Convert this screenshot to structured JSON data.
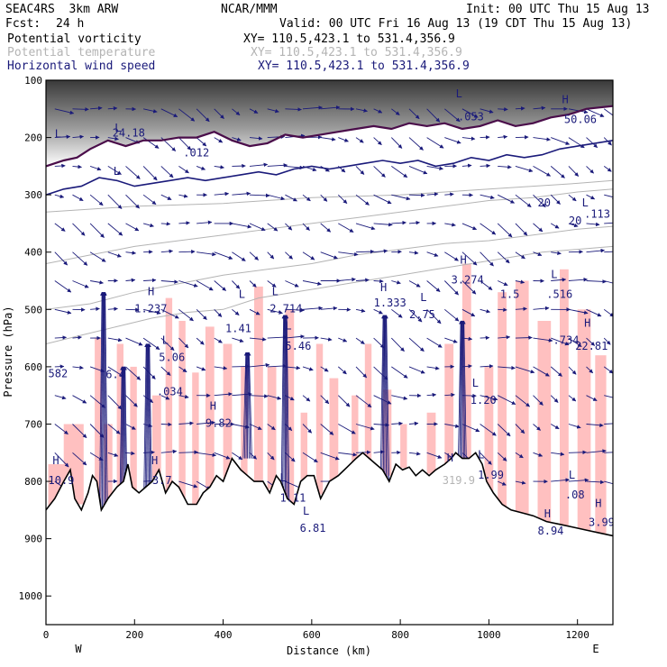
{
  "header": {
    "model": "SEAC4RS  3km ARW",
    "org": "NCAR/MMM",
    "init": "Init: 00 UTC Thu 15 Aug 13",
    "fcst_label": "Fcst:",
    "fcst_value": "24 h",
    "valid": "Valid: 00 UTC Fri 16 Aug 13 (19 CDT Thu 15 Aug 13)"
  },
  "fields": [
    {
      "name": "Potential vorticity",
      "xy": "XY= 110.5,423.1 to 531.4,356.9",
      "color": "#000000"
    },
    {
      "name": "Potential temperature",
      "xy": "XY= 110.5,423.1 to 531.4,356.9",
      "color": "#b4b4b4"
    },
    {
      "name": "Horizontal wind speed",
      "xy": "XY= 110.5,423.1 to 531.4,356.9",
      "color": "#1a1a7a"
    }
  ],
  "chart_data": {
    "type": "cross-section",
    "xlabel": "Distance (km)",
    "ylabel": "Pressure (hPa)",
    "xlim": [
      0,
      1280
    ],
    "ylim": [
      1050,
      100
    ],
    "x_ticks": [
      0,
      200,
      400,
      600,
      800,
      1000,
      1200
    ],
    "y_ticks": [
      100,
      200,
      300,
      400,
      500,
      600,
      700,
      800,
      900,
      1000
    ],
    "x_end_labels": {
      "left": "W",
      "right": "E"
    },
    "colors": {
      "pv_positive": "#ffc0c0",
      "stratosphere": "#555555",
      "pv_line": "#4a0d4a",
      "theta": "#b4b4b4",
      "wind": "#1a1a7a"
    },
    "terrain": [
      [
        0,
        850
      ],
      [
        20,
        830
      ],
      [
        40,
        800
      ],
      [
        55,
        780
      ],
      [
        65,
        830
      ],
      [
        80,
        850
      ],
      [
        95,
        820
      ],
      [
        105,
        790
      ],
      [
        115,
        800
      ],
      [
        125,
        850
      ],
      [
        140,
        830
      ],
      [
        160,
        810
      ],
      [
        175,
        800
      ],
      [
        185,
        770
      ],
      [
        195,
        810
      ],
      [
        210,
        820
      ],
      [
        225,
        810
      ],
      [
        240,
        800
      ],
      [
        255,
        780
      ],
      [
        270,
        820
      ],
      [
        285,
        800
      ],
      [
        300,
        810
      ],
      [
        320,
        840
      ],
      [
        340,
        840
      ],
      [
        355,
        820
      ],
      [
        370,
        810
      ],
      [
        385,
        790
      ],
      [
        400,
        800
      ],
      [
        420,
        760
      ],
      [
        440,
        780
      ],
      [
        455,
        790
      ],
      [
        470,
        800
      ],
      [
        490,
        800
      ],
      [
        505,
        820
      ],
      [
        520,
        790
      ],
      [
        530,
        800
      ],
      [
        545,
        830
      ],
      [
        560,
        840
      ],
      [
        575,
        800
      ],
      [
        590,
        790
      ],
      [
        605,
        790
      ],
      [
        620,
        830
      ],
      [
        640,
        800
      ],
      [
        660,
        790
      ],
      [
        680,
        775
      ],
      [
        700,
        760
      ],
      [
        715,
        750
      ],
      [
        730,
        760
      ],
      [
        745,
        770
      ],
      [
        760,
        780
      ],
      [
        775,
        800
      ],
      [
        790,
        770
      ],
      [
        805,
        780
      ],
      [
        820,
        775
      ],
      [
        835,
        790
      ],
      [
        850,
        780
      ],
      [
        865,
        790
      ],
      [
        880,
        780
      ],
      [
        900,
        770
      ],
      [
        915,
        760
      ],
      [
        925,
        750
      ],
      [
        940,
        760
      ],
      [
        955,
        760
      ],
      [
        970,
        750
      ],
      [
        985,
        770
      ],
      [
        995,
        800
      ],
      [
        1010,
        820
      ],
      [
        1030,
        840
      ],
      [
        1050,
        850
      ],
      [
        1075,
        855
      ],
      [
        1100,
        860
      ],
      [
        1130,
        870
      ],
      [
        1160,
        875
      ],
      [
        1190,
        880
      ],
      [
        1220,
        885
      ],
      [
        1250,
        890
      ],
      [
        1280,
        895
      ]
    ],
    "pv_2pvu": [
      [
        0,
        250
      ],
      [
        40,
        240
      ],
      [
        70,
        235
      ],
      [
        100,
        220
      ],
      [
        140,
        205
      ],
      [
        180,
        215
      ],
      [
        220,
        205
      ],
      [
        260,
        205
      ],
      [
        300,
        200
      ],
      [
        340,
        200
      ],
      [
        380,
        190
      ],
      [
        420,
        205
      ],
      [
        460,
        215
      ],
      [
        500,
        210
      ],
      [
        540,
        195
      ],
      [
        580,
        200
      ],
      [
        620,
        195
      ],
      [
        660,
        190
      ],
      [
        700,
        185
      ],
      [
        740,
        180
      ],
      [
        780,
        185
      ],
      [
        820,
        175
      ],
      [
        860,
        180
      ],
      [
        900,
        175
      ],
      [
        940,
        185
      ],
      [
        980,
        180
      ],
      [
        1020,
        170
      ],
      [
        1060,
        180
      ],
      [
        1100,
        175
      ],
      [
        1140,
        165
      ],
      [
        1180,
        160
      ],
      [
        1220,
        150
      ],
      [
        1280,
        145
      ]
    ],
    "pv_lower": [
      [
        0,
        300
      ],
      [
        40,
        290
      ],
      [
        80,
        285
      ],
      [
        120,
        270
      ],
      [
        160,
        275
      ],
      [
        200,
        285
      ],
      [
        240,
        280
      ],
      [
        280,
        275
      ],
      [
        320,
        270
      ],
      [
        360,
        275
      ],
      [
        400,
        270
      ],
      [
        440,
        265
      ],
      [
        480,
        260
      ],
      [
        520,
        265
      ],
      [
        560,
        255
      ],
      [
        600,
        250
      ],
      [
        640,
        255
      ],
      [
        680,
        250
      ],
      [
        720,
        245
      ],
      [
        760,
        240
      ],
      [
        800,
        245
      ],
      [
        840,
        240
      ],
      [
        880,
        250
      ],
      [
        920,
        245
      ],
      [
        960,
        235
      ],
      [
        1000,
        240
      ],
      [
        1040,
        230
      ],
      [
        1080,
        235
      ],
      [
        1120,
        230
      ],
      [
        1160,
        220
      ],
      [
        1200,
        215
      ],
      [
        1240,
        210
      ],
      [
        1280,
        205
      ]
    ],
    "theta_contours": [
      [
        [
          0,
          560
        ],
        [
          80,
          545
        ],
        [
          160,
          530
        ],
        [
          240,
          515
        ],
        [
          320,
          505
        ],
        [
          400,
          500
        ],
        [
          480,
          480
        ],
        [
          560,
          470
        ],
        [
          640,
          460
        ],
        [
          720,
          450
        ],
        [
          800,
          440
        ],
        [
          880,
          430
        ],
        [
          960,
          420
        ],
        [
          1040,
          410
        ],
        [
          1120,
          400
        ],
        [
          1200,
          395
        ],
        [
          1280,
          390
        ]
      ],
      [
        [
          0,
          500
        ],
        [
          100,
          490
        ],
        [
          200,
          470
        ],
        [
          300,
          455
        ],
        [
          400,
          440
        ],
        [
          500,
          430
        ],
        [
          600,
          420
        ],
        [
          700,
          405
        ],
        [
          800,
          395
        ],
        [
          900,
          385
        ],
        [
          1000,
          380
        ],
        [
          1100,
          370
        ],
        [
          1200,
          360
        ],
        [
          1280,
          355
        ]
      ],
      [
        [
          0,
          420
        ],
        [
          100,
          405
        ],
        [
          200,
          390
        ],
        [
          300,
          380
        ],
        [
          400,
          370
        ],
        [
          500,
          360
        ],
        [
          600,
          350
        ],
        [
          700,
          340
        ],
        [
          800,
          330
        ],
        [
          900,
          320
        ],
        [
          1000,
          310
        ],
        [
          1100,
          305
        ],
        [
          1200,
          295
        ],
        [
          1280,
          290
        ]
      ],
      [
        [
          0,
          330
        ],
        [
          200,
          320
        ],
        [
          400,
          315
        ],
        [
          600,
          305
        ],
        [
          800,
          300
        ],
        [
          1000,
          290
        ],
        [
          1200,
          280
        ],
        [
          1280,
          275
        ]
      ]
    ],
    "pink_columns": [
      [
        5,
        70,
        770
      ],
      [
        40,
        85,
        700
      ],
      [
        110,
        125,
        550
      ],
      [
        130,
        150,
        700
      ],
      [
        160,
        175,
        560
      ],
      [
        190,
        205,
        600
      ],
      [
        240,
        260,
        650
      ],
      [
        270,
        285,
        480
      ],
      [
        300,
        315,
        520
      ],
      [
        330,
        345,
        610
      ],
      [
        360,
        380,
        530
      ],
      [
        400,
        420,
        560
      ],
      [
        440,
        455,
        600
      ],
      [
        470,
        490,
        460
      ],
      [
        500,
        520,
        600
      ],
      [
        540,
        560,
        500
      ],
      [
        575,
        590,
        680
      ],
      [
        610,
        625,
        560
      ],
      [
        640,
        660,
        620
      ],
      [
        690,
        705,
        650
      ],
      [
        720,
        735,
        560
      ],
      [
        760,
        780,
        640
      ],
      [
        800,
        815,
        700
      ],
      [
        860,
        880,
        680
      ],
      [
        900,
        920,
        560
      ],
      [
        940,
        960,
        420
      ],
      [
        990,
        1010,
        600
      ],
      [
        1020,
        1040,
        470
      ],
      [
        1060,
        1090,
        450
      ],
      [
        1110,
        1140,
        520
      ],
      [
        1160,
        1180,
        430
      ],
      [
        1200,
        1230,
        500
      ],
      [
        1240,
        1265,
        580
      ]
    ],
    "wind_arrow_rows": [
      150,
      200,
      250,
      300,
      350,
      400,
      450,
      500,
      550,
      600,
      650,
      700,
      750,
      800
    ],
    "wind_arrow_spacing_km": 40,
    "vertical_jets": [
      {
        "x": 130,
        "p_top": 470,
        "p_bot": 900
      },
      {
        "x": 175,
        "p_top": 600,
        "p_bot": 920
      },
      {
        "x": 230,
        "p_top": 560,
        "p_bot": 870
      },
      {
        "x": 455,
        "p_top": 575,
        "p_bot": 760
      },
      {
        "x": 540,
        "p_top": 510,
        "p_bot": 880
      },
      {
        "x": 765,
        "p_top": 510,
        "p_bot": 800
      },
      {
        "x": 940,
        "p_top": 520,
        "p_bot": 800
      }
    ],
    "annotations": [
      {
        "text": "L",
        "x": 20,
        "p": 200,
        "color": "#1a1a7a"
      },
      {
        "text": "L",
        "x": 155,
        "p": 190,
        "color": "#1a1a7a"
      },
      {
        "text": "24.18",
        "x": 150,
        "p": 198,
        "color": "#1a1a7a"
      },
      {
        "text": "L",
        "x": 152,
        "p": 265,
        "color": "#1a1a7a"
      },
      {
        "text": ".012",
        "x": 310,
        "p": 233,
        "color": "#1a1a7a"
      },
      {
        "text": "L",
        "x": 925,
        "p": 130,
        "color": "#1a1a7a"
      },
      {
        "text": ".053",
        "x": 930,
        "p": 170,
        "color": "#1a1a7a"
      },
      {
        "text": "H",
        "x": 1165,
        "p": 140,
        "color": "#1a1a7a"
      },
      {
        "text": "50.06",
        "x": 1170,
        "p": 175,
        "color": "#1a1a7a"
      },
      {
        "text": "20",
        "x": 1110,
        "p": 320,
        "color": "#1a1a7a"
      },
      {
        "text": "L",
        "x": 1210,
        "p": 320,
        "color": "#1a1a7a"
      },
      {
        "text": ".113",
        "x": 1215,
        "p": 340,
        "color": "#1a1a7a"
      },
      {
        "text": "20",
        "x": 1180,
        "p": 352,
        "color": "#1a1a7a"
      },
      {
        "text": "H",
        "x": 935,
        "p": 420,
        "color": "#1a1a7a"
      },
      {
        "text": "3.274",
        "x": 915,
        "p": 455,
        "color": "#1a1a7a"
      },
      {
        "text": "H",
        "x": 230,
        "p": 475,
        "color": "#1a1a7a"
      },
      {
        "text": "1.237",
        "x": 200,
        "p": 505,
        "color": "#1a1a7a"
      },
      {
        "text": "L",
        "x": 435,
        "p": 480,
        "color": "#1a1a7a"
      },
      {
        "text": "1.41",
        "x": 405,
        "p": 540,
        "color": "#1a1a7a"
      },
      {
        "text": "L",
        "x": 510,
        "p": 475,
        "color": "#1a1a7a"
      },
      {
        "text": "2.714",
        "x": 505,
        "p": 505,
        "color": "#1a1a7a"
      },
      {
        "text": "H",
        "x": 755,
        "p": 468,
        "color": "#1a1a7a"
      },
      {
        "text": "1.333",
        "x": 740,
        "p": 495,
        "color": "#1a1a7a"
      },
      {
        "text": "L",
        "x": 845,
        "p": 485,
        "color": "#1a1a7a"
      },
      {
        "text": "2.75",
        "x": 820,
        "p": 515,
        "color": "#1a1a7a"
      },
      {
        "text": "1.5",
        "x": 1025,
        "p": 480,
        "color": "#1a1a7a"
      },
      {
        "text": "L",
        "x": 1140,
        "p": 445,
        "color": "#1a1a7a"
      },
      {
        "text": ".516",
        "x": 1130,
        "p": 480,
        "color": "#1a1a7a"
      },
      {
        "text": "H",
        "x": 1215,
        "p": 530,
        "color": "#1a1a7a"
      },
      {
        "text": "-.734",
        "x": 1130,
        "p": 560,
        "color": "#1a1a7a"
      },
      {
        "text": "22.81",
        "x": 1195,
        "p": 570,
        "color": "#1a1a7a"
      },
      {
        "text": "L",
        "x": 540,
        "p": 535,
        "color": "#1a1a7a"
      },
      {
        "text": "5.46",
        "x": 540,
        "p": 570,
        "color": "#1a1a7a"
      },
      {
        "text": "L",
        "x": 262,
        "p": 560,
        "color": "#1a1a7a"
      },
      {
        "text": "5.06",
        "x": 255,
        "p": 590,
        "color": "#1a1a7a"
      },
      {
        "text": "582",
        "x": 5,
        "p": 618,
        "color": "#1a1a7a"
      },
      {
        "text": "6.4",
        "x": 135,
        "p": 620,
        "color": "#1a1a7a"
      },
      {
        "text": ".034",
        "x": 250,
        "p": 650,
        "color": "#1a1a7a"
      },
      {
        "text": "H",
        "x": 370,
        "p": 675,
        "color": "#1a1a7a"
      },
      {
        "text": "9.82",
        "x": 360,
        "p": 705,
        "color": "#1a1a7a"
      },
      {
        "text": "L",
        "x": 962,
        "p": 635,
        "color": "#1a1a7a"
      },
      {
        "text": "1.20",
        "x": 958,
        "p": 665,
        "color": "#1a1a7a"
      },
      {
        "text": "H",
        "x": 15,
        "p": 770,
        "color": "#1a1a7a"
      },
      {
        "text": "10.9",
        "x": 5,
        "p": 805,
        "color": "#1a1a7a"
      },
      {
        "text": "H",
        "x": 238,
        "p": 770,
        "color": "#1a1a7a"
      },
      {
        "text": "3.7",
        "x": 240,
        "p": 805,
        "color": "#1a1a7a"
      },
      {
        "text": "L",
        "x": 528,
        "p": 800,
        "color": "#1a1a7a"
      },
      {
        "text": "1.11",
        "x": 528,
        "p": 835,
        "color": "#1a1a7a"
      },
      {
        "text": "H",
        "x": 905,
        "p": 765,
        "color": "#1a1a7a"
      },
      {
        "text": "319.9",
        "x": 895,
        "p": 805,
        "color": "#b4b4b4"
      },
      {
        "text": "L",
        "x": 975,
        "p": 760,
        "color": "#1a1a7a"
      },
      {
        "text": "1.99",
        "x": 975,
        "p": 795,
        "color": "#1a1a7a"
      },
      {
        "text": "L",
        "x": 1180,
        "p": 795,
        "color": "#1a1a7a"
      },
      {
        "text": ".08",
        "x": 1172,
        "p": 830,
        "color": "#1a1a7a"
      },
      {
        "text": "L",
        "x": 580,
        "p": 858,
        "color": "#1a1a7a"
      },
      {
        "text": "6.81",
        "x": 573,
        "p": 888,
        "color": "#1a1a7a"
      },
      {
        "text": "H",
        "x": 1125,
        "p": 863,
        "color": "#1a1a7a"
      },
      {
        "text": "8.94",
        "x": 1110,
        "p": 893,
        "color": "#1a1a7a"
      },
      {
        "text": "H",
        "x": 1240,
        "p": 845,
        "color": "#1a1a7a"
      },
      {
        "text": "3.99",
        "x": 1225,
        "p": 878,
        "color": "#1a1a7a"
      }
    ]
  }
}
